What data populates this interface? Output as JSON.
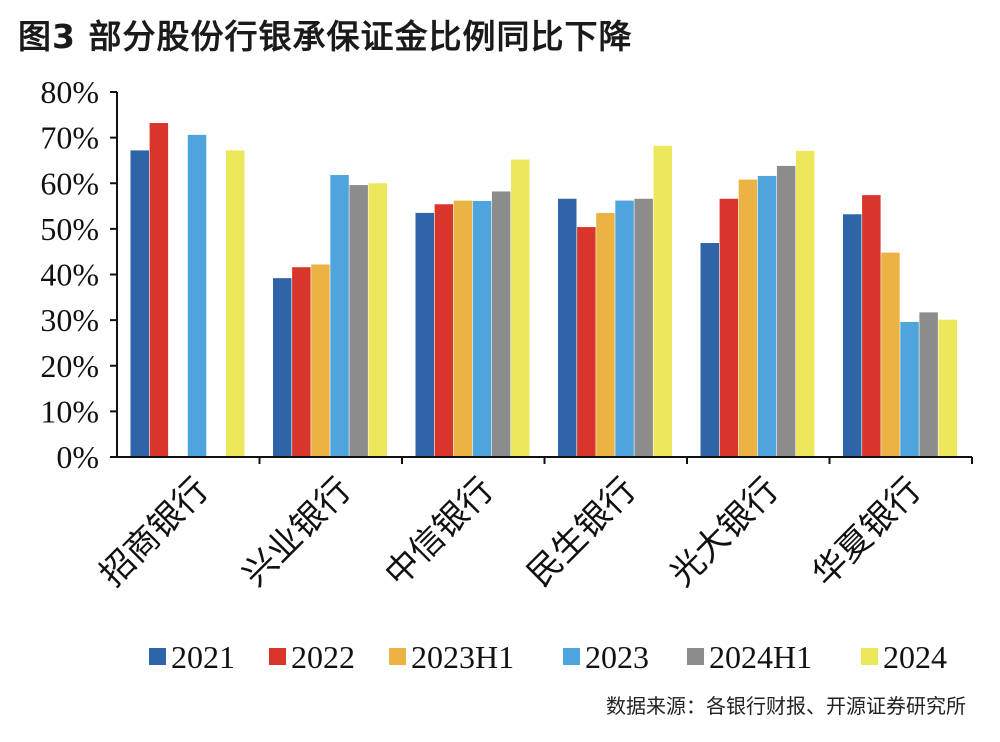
{
  "title": "图3  部分股份行银承保证金比例同比下降",
  "source": "数据来源：各银行财报、开源证券研究所",
  "chart_data": {
    "type": "bar",
    "ylim": [
      0,
      80
    ],
    "yticks": [
      "0%",
      "10%",
      "20%",
      "30%",
      "40%",
      "50%",
      "60%",
      "70%",
      "80%"
    ],
    "categories": [
      "招商银行",
      "兴业银行",
      "中信银行",
      "民生银行",
      "光大银行",
      "华夏银行"
    ],
    "series": [
      {
        "name": "2021",
        "color": "#2e65a8",
        "values": [
          67.2,
          39.2,
          53.5,
          56.6,
          46.9,
          53.2
        ]
      },
      {
        "name": "2022",
        "color": "#d9362b",
        "values": [
          73.2,
          41.6,
          55.4,
          50.4,
          56.6,
          57.4
        ]
      },
      {
        "name": "2023H1",
        "color": "#ebb344",
        "values": [
          null,
          42.2,
          56.2,
          53.5,
          60.8,
          44.8
        ]
      },
      {
        "name": "2023",
        "color": "#4ea4dc",
        "values": [
          70.6,
          61.8,
          56.1,
          56.2,
          61.6,
          29.6
        ]
      },
      {
        "name": "2024H1",
        "color": "#8c8c8c",
        "values": [
          null,
          59.6,
          58.2,
          56.6,
          63.8,
          31.7
        ]
      },
      {
        "name": "2024",
        "color": "#ede75b",
        "values": [
          67.2,
          60.0,
          65.2,
          68.2,
          67.1,
          30.1
        ]
      }
    ]
  }
}
